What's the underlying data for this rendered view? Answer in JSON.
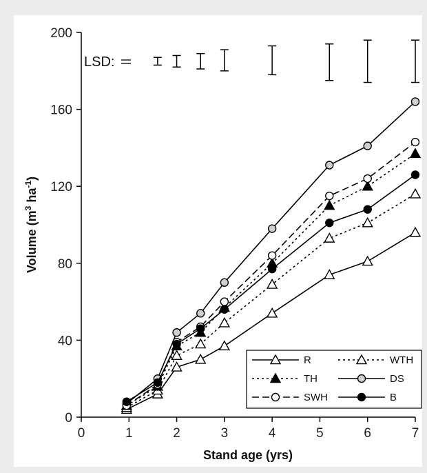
{
  "chart_data": {
    "type": "line",
    "xlabel": "Stand age (yrs)",
    "ylabel_main": "Volume (m",
    "ylabel_sup1": "3",
    "ylabel_mid": " ha",
    "ylabel_sup2": "-1",
    "ylabel_end": ")",
    "xlim": [
      0,
      7
    ],
    "ylim": [
      0,
      200
    ],
    "xticks": [
      0,
      1,
      2,
      3,
      4,
      5,
      6,
      7
    ],
    "yticks": [
      0,
      40,
      80,
      120,
      160,
      200
    ],
    "x": [
      0.95,
      1.6,
      2.0,
      2.5,
      3.0,
      4.0,
      5.2,
      6.0,
      7.0
    ],
    "series": [
      {
        "name": "R",
        "marker": "triangle-open",
        "dash": "solid",
        "values": [
          4,
          12,
          26,
          30,
          37,
          54,
          74,
          81,
          96
        ]
      },
      {
        "name": "WTH",
        "marker": "triangle-open",
        "dash": "dotted",
        "values": [
          5,
          14,
          32,
          38,
          49,
          69,
          93,
          101,
          116
        ]
      },
      {
        "name": "TH",
        "marker": "triangle-filled",
        "dash": "dotted",
        "values": [
          6,
          16,
          37,
          44,
          57,
          80,
          110,
          120,
          137
        ]
      },
      {
        "name": "DS",
        "marker": "circle-gray",
        "dash": "solid",
        "values": [
          7,
          20,
          44,
          54,
          70,
          98,
          131,
          141,
          164
        ]
      },
      {
        "name": "SWH",
        "marker": "circle-open",
        "dash": "dashed",
        "values": [
          6,
          17,
          39,
          47,
          60,
          84,
          115,
          124,
          143
        ]
      },
      {
        "name": "B",
        "marker": "circle-filled",
        "dash": "solid",
        "values": [
          8,
          18,
          38,
          46,
          56,
          77,
          101,
          108,
          126
        ]
      }
    ],
    "lsd_label": "LSD:",
    "lsd": [
      {
        "x": 1.6,
        "low": 183,
        "high": 187
      },
      {
        "x": 2.0,
        "low": 182,
        "high": 188
      },
      {
        "x": 2.5,
        "low": 181,
        "high": 189
      },
      {
        "x": 3.0,
        "low": 180,
        "high": 191
      },
      {
        "x": 4.0,
        "low": 178,
        "high": 193
      },
      {
        "x": 5.2,
        "low": 175,
        "high": 194
      },
      {
        "x": 6.0,
        "low": 174,
        "high": 196
      },
      {
        "x": 7.0,
        "low": 174,
        "high": 196
      }
    ],
    "legend_order": [
      "R",
      "WTH",
      "TH",
      "DS",
      "SWH",
      "B"
    ],
    "legend_placement": "bottom-right",
    "grid": false
  }
}
